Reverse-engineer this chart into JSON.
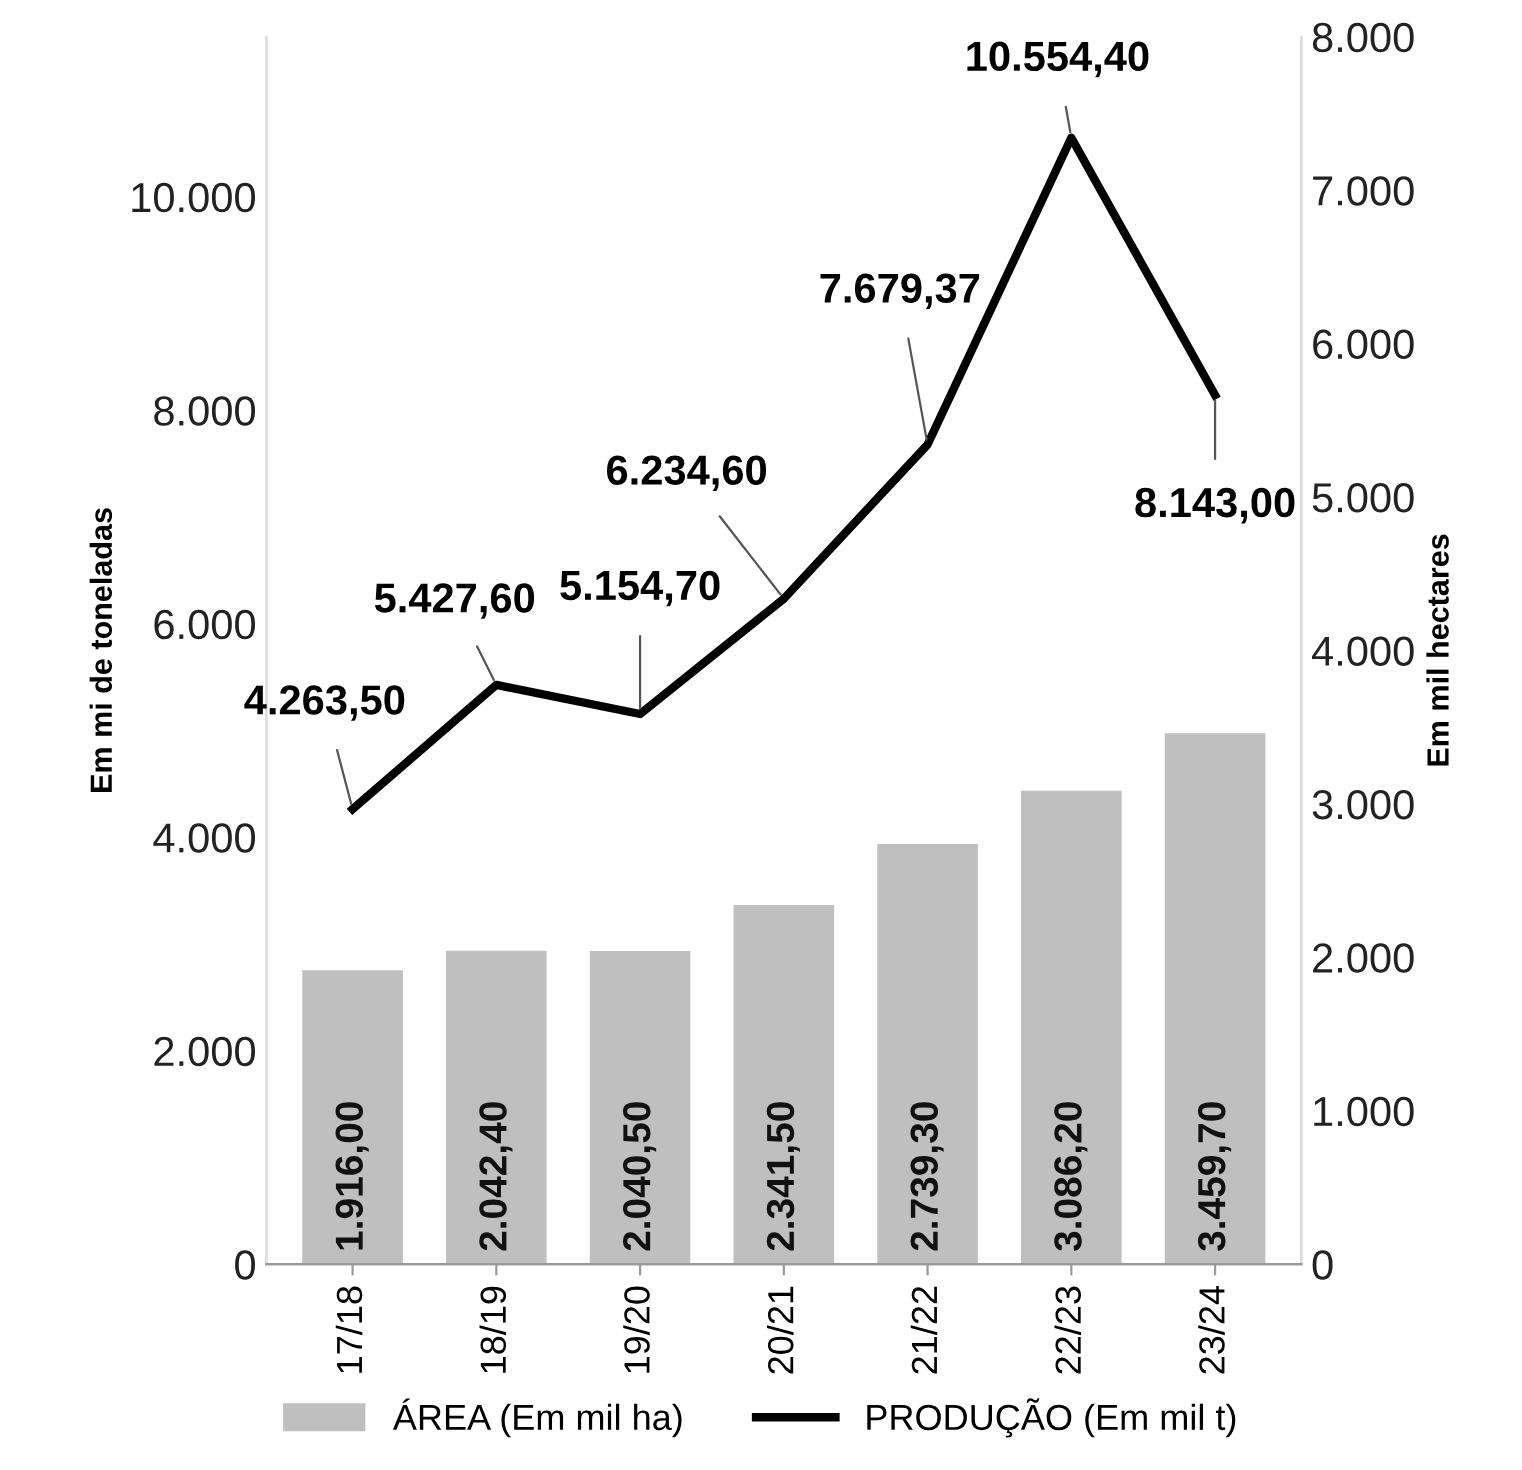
{
  "chart_data": {
    "type": "bar",
    "categories": [
      "17/18",
      "18/19",
      "19/20",
      "20/21",
      "21/22",
      "22/23",
      "23/24"
    ],
    "ylabel": "Em mi de toneladas",
    "y2label": "Em mil hectares",
    "ylim": [
      0,
      11500
    ],
    "yticks": [
      0,
      {
        "value": 2000,
        "label": "2.000"
      },
      {
        "value": 4000,
        "label": "4.000"
      },
      {
        "value": 6000,
        "label": "6.000"
      },
      {
        "value": 8000,
        "label": "8.000"
      },
      {
        "value": 10000,
        "label": "10.000"
      }
    ],
    "y2lim": [
      0,
      8000
    ],
    "y2ticks": [
      0,
      {
        "value": 1000,
        "label": "1.000"
      },
      {
        "value": 2000,
        "label": "2.000"
      },
      {
        "value": 3000,
        "label": "3.000"
      },
      {
        "value": 4000,
        "label": "4.000"
      },
      {
        "value": 5000,
        "label": "5.000"
      },
      {
        "value": 6000,
        "label": "6.000"
      },
      {
        "value": 7000,
        "label": "7.000"
      },
      {
        "value": 8000,
        "label": "8.000"
      }
    ],
    "series": [
      {
        "name": "ÁREA (Em mil ha)",
        "axis": "y2",
        "color": "#bfbfbf",
        "values": [
          1916.0,
          2042.4,
          2040.5,
          2341.5,
          2739.3,
          3086.2,
          3459.7
        ],
        "value_labels": [
          "1.916,00",
          "2.042,40",
          "2.040,50",
          "2.341,50",
          "2.739,30",
          "3.086,20",
          "3.459,70"
        ]
      },
      {
        "name": "PRODUÇÃO (Em mil t)",
        "type": "line",
        "color": "#000000",
        "values": [
          4263.5,
          5427.6,
          5154.7,
          6234.6,
          7679.37,
          10554.4,
          8143.0
        ],
        "value_labels": [
          "4.263,50",
          "5.427,60",
          "5.154,70",
          "6.234,60",
          "7.679,37",
          "10.554,40",
          "8.143,00"
        ]
      }
    ],
    "grid": false,
    "legend": "bottom"
  }
}
